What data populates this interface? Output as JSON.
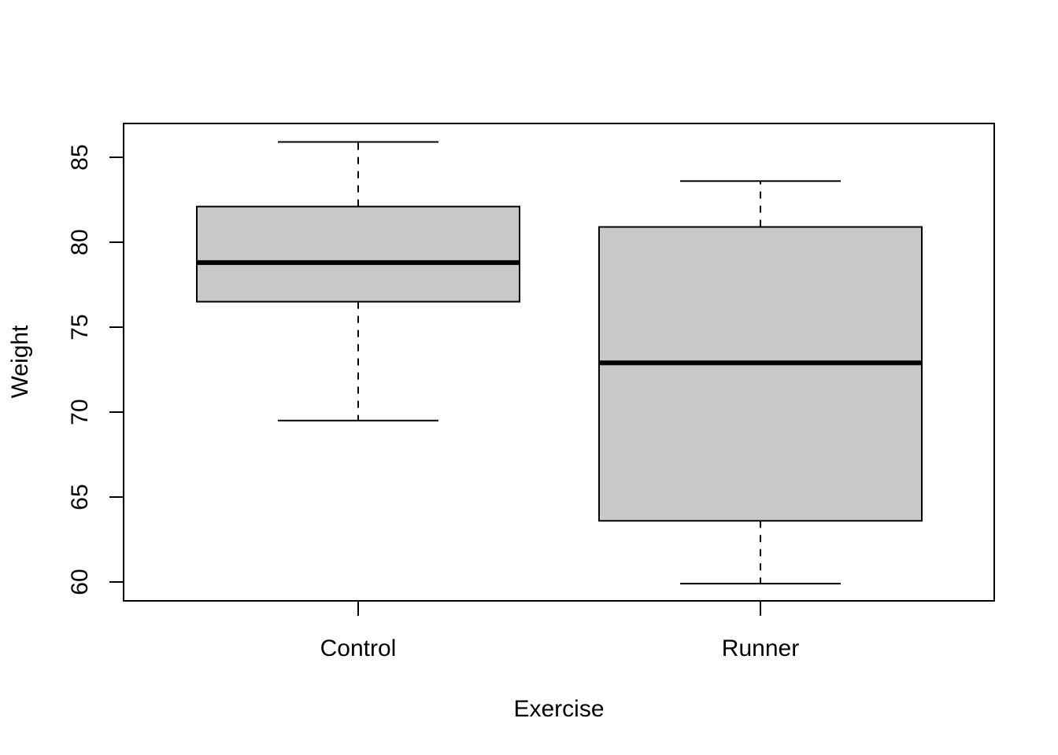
{
  "chart_data": {
    "type": "boxplot",
    "title": "",
    "xlabel": "Exercise",
    "ylabel": "Weight",
    "ylim": [
      59,
      87
    ],
    "yticks": [
      60,
      65,
      70,
      75,
      80,
      85
    ],
    "grid": false,
    "legend": "none",
    "box_fill": "#c8c8c8",
    "line_color": "#000000",
    "categories": [
      "Control",
      "Runner"
    ],
    "groups": [
      {
        "label": "Control",
        "whisker_low": 69.5,
        "q1": 76.5,
        "median": 78.8,
        "q3": 82.1,
        "whisker_high": 85.9
      },
      {
        "label": "Runner",
        "whisker_low": 59.9,
        "q1": 63.6,
        "median": 72.9,
        "q3": 80.9,
        "whisker_high": 83.6
      }
    ]
  }
}
